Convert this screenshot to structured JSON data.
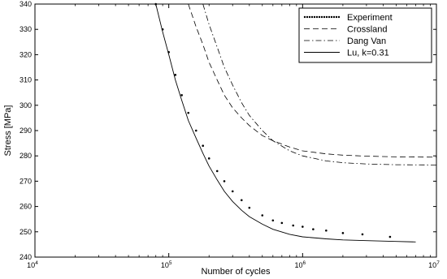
{
  "chart_data": {
    "type": "line",
    "xlabel": "Number of cycles",
    "ylabel": "Stress [MPa]",
    "x_scale": "log",
    "xlim": [
      10000,
      10000000
    ],
    "ylim": [
      240,
      340
    ],
    "x_ticks": [
      {
        "base": "10",
        "exp": "4",
        "value": 10000
      },
      {
        "base": "10",
        "exp": "5",
        "value": 100000
      },
      {
        "base": "10",
        "exp": "6",
        "value": 1000000
      },
      {
        "base": "10",
        "exp": "7",
        "value": 10000000
      }
    ],
    "y_ticks": [
      240,
      250,
      260,
      270,
      280,
      290,
      300,
      310,
      320,
      330,
      340
    ],
    "grid": false,
    "legend_position": "top-right",
    "series": [
      {
        "name": "Experiment",
        "style": "dotted",
        "x": [
          80000,
          90000,
          100000,
          112000,
          125000,
          140000,
          160000,
          180000,
          200000,
          230000,
          260000,
          300000,
          350000,
          400000,
          500000,
          600000,
          700000,
          850000,
          1000000,
          1200000,
          1500000,
          2000000,
          2800000,
          4500000
        ],
        "y": [
          340,
          330,
          321,
          312,
          304,
          297,
          290,
          284,
          279,
          274,
          270,
          266,
          262.5,
          259.5,
          256.5,
          254.5,
          253.5,
          252.5,
          252,
          251,
          250.5,
          249.5,
          249,
          248
        ]
      },
      {
        "name": "Crossland",
        "style": "dashed",
        "x": [
          140000,
          160000,
          180000,
          200000,
          230000,
          260000,
          300000,
          350000,
          400000,
          500000,
          600000,
          800000,
          1000000,
          1500000,
          2000000,
          3000000,
          5000000,
          10000000
        ],
        "y": [
          340,
          331,
          324,
          317,
          310,
          304,
          299,
          295,
          292,
          288,
          286,
          283.5,
          282,
          280.8,
          280.3,
          279.9,
          279.6,
          279.5
        ]
      },
      {
        "name": "Dang Van",
        "style": "dashdot",
        "x": [
          180000,
          200000,
          230000,
          260000,
          300000,
          350000,
          400000,
          500000,
          600000,
          800000,
          1000000,
          1500000,
          2000000,
          3000000,
          5000000,
          10000000
        ],
        "y": [
          340,
          332,
          323,
          315,
          308,
          301,
          296,
          290,
          286,
          282,
          280,
          278,
          277.3,
          276.8,
          276.5,
          276.4
        ]
      },
      {
        "name": "Lu, k=0.31",
        "style": "solid",
        "x": [
          80000,
          90000,
          100000,
          112000,
          125000,
          140000,
          160000,
          180000,
          200000,
          230000,
          260000,
          300000,
          350000,
          400000,
          500000,
          600000,
          800000,
          1000000,
          1500000,
          2000000,
          3000000,
          5000000,
          7000000
        ],
        "y": [
          340,
          329,
          320,
          310,
          302,
          294,
          287,
          281,
          276,
          270.5,
          266,
          262,
          258.5,
          256,
          253,
          251,
          249,
          248,
          247.2,
          246.8,
          246.5,
          246.2,
          246
        ]
      }
    ]
  }
}
